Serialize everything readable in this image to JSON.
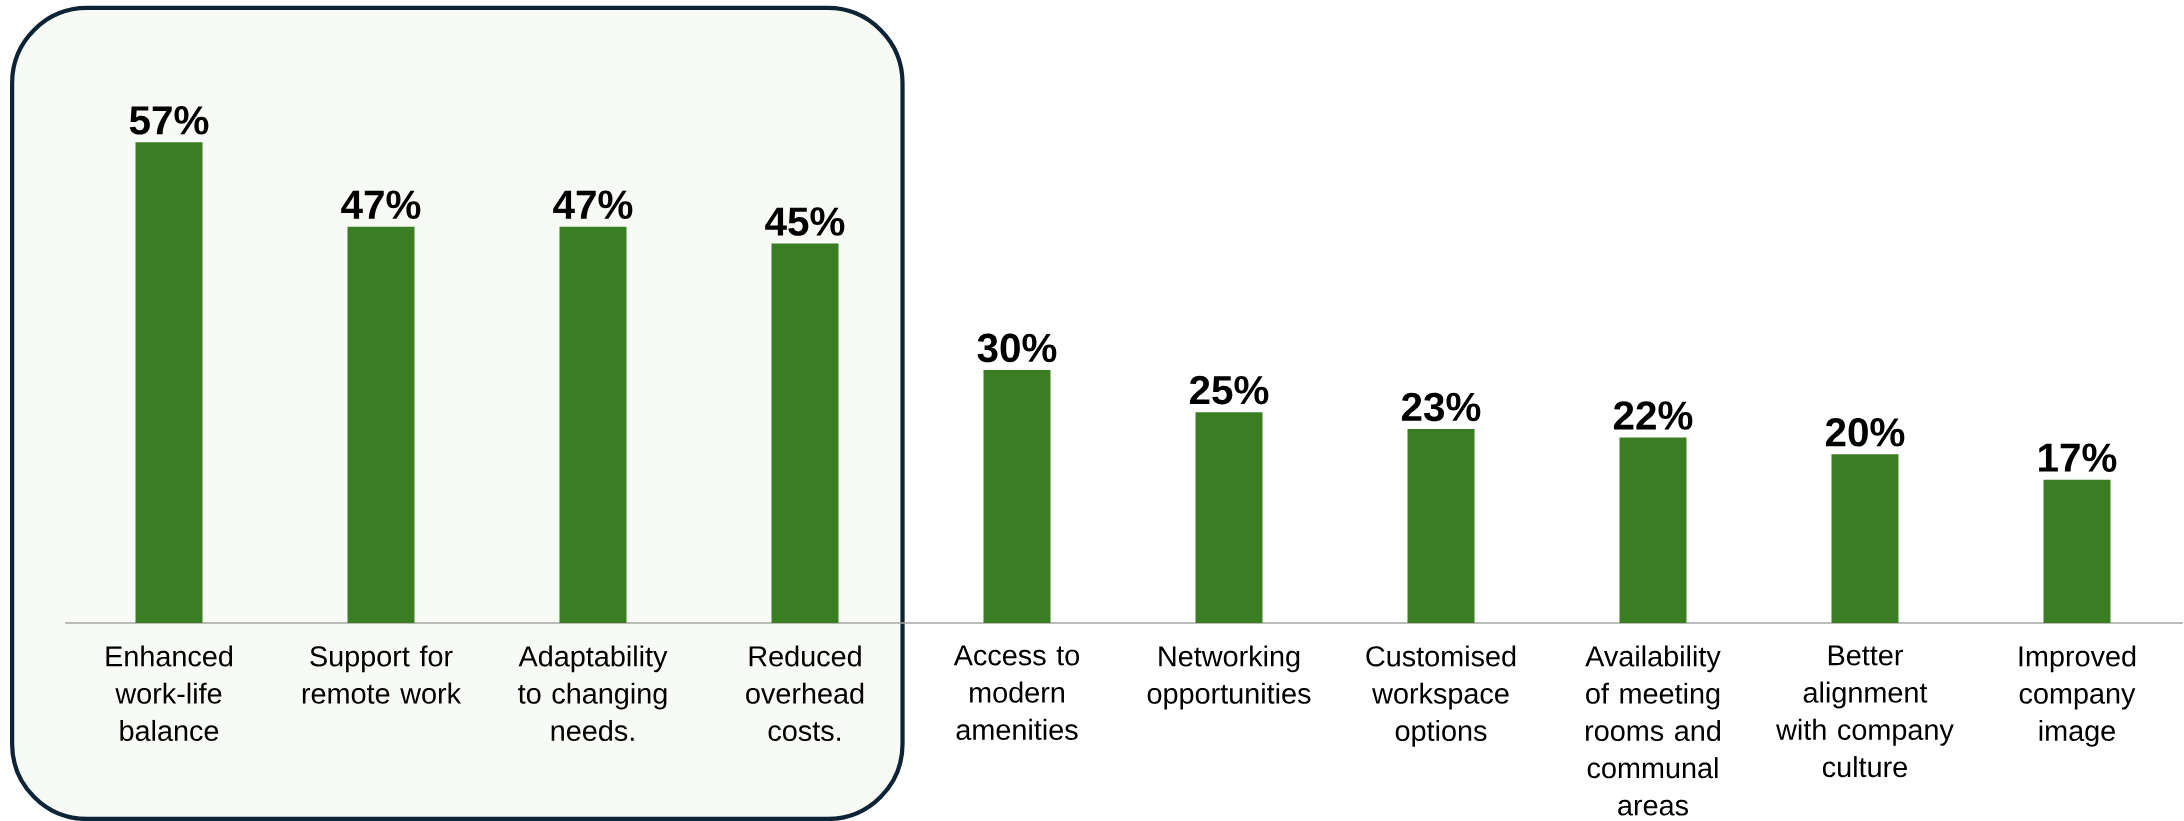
{
  "chart_data": {
    "type": "bar",
    "categories": [
      "Enhanced work-life balance",
      "Support for remote work",
      "Adaptability to changing needs.",
      "Reduced overhead costs.",
      "Access to modern amenities",
      "Networking opportunities",
      "Customised workspace options",
      "Availability of meeting rooms and communal areas",
      "Better alignment with company culture",
      "Improved company image"
    ],
    "values": [
      57,
      47,
      47,
      45,
      30,
      25,
      23,
      22,
      20,
      17
    ],
    "value_labels": [
      "57%",
      "47%",
      "47%",
      "45%",
      "30%",
      "25%",
      "23%",
      "22%",
      "20%",
      "17%"
    ],
    "color": "#3a7d23",
    "bands": [
      {
        "axis": "x",
        "from": "Enhanced work-life balance",
        "to": "Reduced overhead costs.",
        "color": "#f7faf5"
      }
    ]
  }
}
